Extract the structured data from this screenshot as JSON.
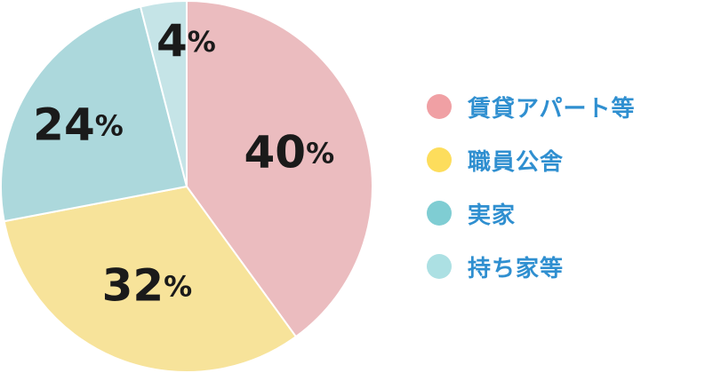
{
  "chart_data": {
    "type": "pie",
    "categories": [
      "賃貸アパート等",
      "職員公舎",
      "実家",
      "持ち家等"
    ],
    "values": [
      40,
      32,
      24,
      4
    ],
    "unit": "%",
    "colors": [
      "#ebbcbf",
      "#f7e39a",
      "#acd8dc",
      "#c5e4e7"
    ],
    "legend_colors": [
      "#f0a0a4",
      "#fddd5c",
      "#7fcdd3",
      "#ace0e3"
    ],
    "legend_position": "right",
    "start": "top",
    "direction": "clockwise"
  }
}
